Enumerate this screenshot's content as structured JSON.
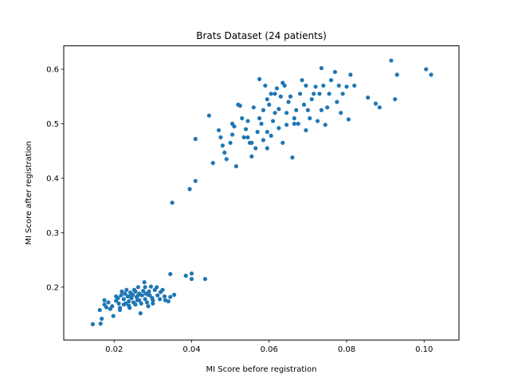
{
  "chart_data": {
    "type": "scatter",
    "title": "Brats Dataset (24 patients)",
    "xlabel": "MI Score before registration",
    "ylabel": "MI Score after registration",
    "xlim": [
      0.007,
      0.109
    ],
    "ylim": [
      0.103,
      0.643
    ],
    "xticks": [
      0.02,
      0.04,
      0.06,
      0.08,
      0.1
    ],
    "xtick_labels": [
      "0.02",
      "0.04",
      "0.06",
      "0.08",
      "0.10"
    ],
    "yticks": [
      0.2,
      0.3,
      0.4,
      0.5,
      0.6
    ],
    "ytick_labels": [
      "0.2",
      "0.3",
      "0.4",
      "0.5",
      "0.6"
    ],
    "grid": false,
    "marker_color": "#1f77b4",
    "points": [
      [
        0.0145,
        0.132
      ],
      [
        0.0165,
        0.133
      ],
      [
        0.0168,
        0.142
      ],
      [
        0.0163,
        0.158
      ],
      [
        0.0175,
        0.168
      ],
      [
        0.018,
        0.163
      ],
      [
        0.0185,
        0.172
      ],
      [
        0.019,
        0.16
      ],
      [
        0.0195,
        0.165
      ],
      [
        0.0198,
        0.147
      ],
      [
        0.0175,
        0.176
      ],
      [
        0.0205,
        0.175
      ],
      [
        0.021,
        0.18
      ],
      [
        0.0212,
        0.17
      ],
      [
        0.0215,
        0.158
      ],
      [
        0.0218,
        0.185
      ],
      [
        0.022,
        0.192
      ],
      [
        0.0225,
        0.178
      ],
      [
        0.0228,
        0.188
      ],
      [
        0.023,
        0.17
      ],
      [
        0.0232,
        0.195
      ],
      [
        0.0235,
        0.183
      ],
      [
        0.0238,
        0.174
      ],
      [
        0.024,
        0.162
      ],
      [
        0.0242,
        0.19
      ],
      [
        0.0245,
        0.18
      ],
      [
        0.0248,
        0.186
      ],
      [
        0.025,
        0.172
      ],
      [
        0.0252,
        0.195
      ],
      [
        0.0255,
        0.168
      ],
      [
        0.0258,
        0.182
      ],
      [
        0.026,
        0.176
      ],
      [
        0.0262,
        0.2
      ],
      [
        0.0265,
        0.188
      ],
      [
        0.0268,
        0.152
      ],
      [
        0.027,
        0.17
      ],
      [
        0.0272,
        0.185
      ],
      [
        0.0275,
        0.193
      ],
      [
        0.0278,
        0.209
      ],
      [
        0.028,
        0.178
      ],
      [
        0.0282,
        0.188
      ],
      [
        0.0285,
        0.172
      ],
      [
        0.0288,
        0.165
      ],
      [
        0.029,
        0.192
      ],
      [
        0.0292,
        0.185
      ],
      [
        0.0295,
        0.201
      ],
      [
        0.0298,
        0.18
      ],
      [
        0.03,
        0.176
      ],
      [
        0.0305,
        0.195
      ],
      [
        0.031,
        0.2
      ],
      [
        0.0312,
        0.185
      ],
      [
        0.0318,
        0.178
      ],
      [
        0.032,
        0.191
      ],
      [
        0.0325,
        0.195
      ],
      [
        0.033,
        0.183
      ],
      [
        0.034,
        0.174
      ],
      [
        0.0345,
        0.182
      ],
      [
        0.0355,
        0.186
      ],
      [
        0.0345,
        0.224
      ],
      [
        0.0385,
        0.221
      ],
      [
        0.04,
        0.225
      ],
      [
        0.04,
        0.215
      ],
      [
        0.0435,
        0.215
      ],
      [
        0.0215,
        0.162
      ],
      [
        0.0225,
        0.168
      ],
      [
        0.024,
        0.183
      ],
      [
        0.0255,
        0.192
      ],
      [
        0.0265,
        0.176
      ],
      [
        0.028,
        0.2
      ],
      [
        0.03,
        0.17
      ],
      [
        0.0332,
        0.176
      ],
      [
        0.0205,
        0.183
      ],
      [
        0.0238,
        0.166
      ],
      [
        0.0262,
        0.185
      ],
      [
        0.0288,
        0.186
      ],
      [
        0.035,
        0.355
      ],
      [
        0.0395,
        0.38
      ],
      [
        0.041,
        0.395
      ],
      [
        0.041,
        0.472
      ],
      [
        0.0445,
        0.515
      ],
      [
        0.0455,
        0.428
      ],
      [
        0.047,
        0.488
      ],
      [
        0.0475,
        0.475
      ],
      [
        0.048,
        0.46
      ],
      [
        0.0485,
        0.447
      ],
      [
        0.049,
        0.435
      ],
      [
        0.05,
        0.465
      ],
      [
        0.0505,
        0.5
      ],
      [
        0.051,
        0.495
      ],
      [
        0.0515,
        0.422
      ],
      [
        0.052,
        0.535
      ],
      [
        0.0525,
        0.533
      ],
      [
        0.053,
        0.51
      ],
      [
        0.0535,
        0.475
      ],
      [
        0.054,
        0.49
      ],
      [
        0.0545,
        0.475
      ],
      [
        0.055,
        0.465
      ],
      [
        0.0555,
        0.44
      ],
      [
        0.056,
        0.53
      ],
      [
        0.057,
        0.485
      ],
      [
        0.0575,
        0.582
      ],
      [
        0.058,
        0.5
      ],
      [
        0.0585,
        0.525
      ],
      [
        0.059,
        0.57
      ],
      [
        0.0595,
        0.545
      ],
      [
        0.06,
        0.535
      ],
      [
        0.0605,
        0.555
      ],
      [
        0.061,
        0.505
      ],
      [
        0.0615,
        0.555
      ],
      [
        0.062,
        0.565
      ],
      [
        0.0625,
        0.527
      ],
      [
        0.063,
        0.55
      ],
      [
        0.0635,
        0.575
      ],
      [
        0.064,
        0.57
      ],
      [
        0.0645,
        0.52
      ],
      [
        0.065,
        0.54
      ],
      [
        0.0655,
        0.55
      ],
      [
        0.066,
        0.438
      ],
      [
        0.0665,
        0.51
      ],
      [
        0.067,
        0.525
      ],
      [
        0.0675,
        0.5
      ],
      [
        0.068,
        0.555
      ],
      [
        0.0685,
        0.58
      ],
      [
        0.069,
        0.535
      ],
      [
        0.0695,
        0.57
      ],
      [
        0.07,
        0.525
      ],
      [
        0.0705,
        0.51
      ],
      [
        0.071,
        0.545
      ],
      [
        0.0715,
        0.555
      ],
      [
        0.072,
        0.568
      ],
      [
        0.0725,
        0.505
      ],
      [
        0.073,
        0.555
      ],
      [
        0.0735,
        0.525
      ],
      [
        0.074,
        0.57
      ],
      [
        0.0745,
        0.498
      ],
      [
        0.075,
        0.53
      ],
      [
        0.0755,
        0.555
      ],
      [
        0.076,
        0.58
      ],
      [
        0.077,
        0.595
      ],
      [
        0.0775,
        0.54
      ],
      [
        0.078,
        0.57
      ],
      [
        0.0785,
        0.52
      ],
      [
        0.079,
        0.555
      ],
      [
        0.08,
        0.568
      ],
      [
        0.0805,
        0.508
      ],
      [
        0.081,
        0.59
      ],
      [
        0.082,
        0.57
      ],
      [
        0.0735,
        0.602
      ],
      [
        0.0595,
        0.485
      ],
      [
        0.0565,
        0.455
      ],
      [
        0.0585,
        0.47
      ],
      [
        0.0625,
        0.492
      ],
      [
        0.0645,
        0.498
      ],
      [
        0.0615,
        0.52
      ],
      [
        0.0665,
        0.5
      ],
      [
        0.0695,
        0.488
      ],
      [
        0.0605,
        0.478
      ],
      [
        0.0635,
        0.465
      ],
      [
        0.0555,
        0.465
      ],
      [
        0.0575,
        0.51
      ],
      [
        0.0595,
        0.455
      ],
      [
        0.0545,
        0.505
      ],
      [
        0.0505,
        0.48
      ],
      [
        0.0855,
        0.548
      ],
      [
        0.0875,
        0.537
      ],
      [
        0.0885,
        0.53
      ],
      [
        0.0915,
        0.616
      ],
      [
        0.093,
        0.59
      ],
      [
        0.0925,
        0.545
      ],
      [
        0.1005,
        0.6
      ],
      [
        0.1018,
        0.59
      ]
    ]
  }
}
